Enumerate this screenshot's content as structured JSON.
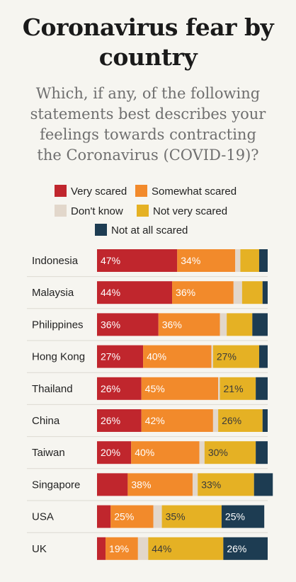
{
  "title_line1": "Coronavirus fear by",
  "title_line2": "country",
  "subtitle_lines": [
    "Which, if any, of the following",
    "statements best describes your",
    "feelings towards contracting",
    "the Coronavirus (COVID-19)?"
  ],
  "legend": [
    {
      "label": "Very scared",
      "color": "#c0262d"
    },
    {
      "label": "Somewhat scared",
      "color": "#f28a2b"
    },
    {
      "label": "Don't know",
      "color": "#e2d7cb"
    },
    {
      "label": "Not very scared",
      "color": "#e5b124"
    },
    {
      "label": "Not at all scared",
      "color": "#1d3c52"
    }
  ],
  "chart_data": {
    "type": "bar",
    "orientation": "horizontal",
    "stacked": true,
    "categories": [
      "Indonesia",
      "Malaysia",
      "Philippines",
      "Hong Kong",
      "Thailand",
      "China",
      "Taiwan",
      "Singapore",
      "USA",
      "UK"
    ],
    "xlim": [
      0,
      100
    ],
    "series": [
      {
        "name": "Very scared",
        "color": "#c0262d",
        "values": [
          47,
          44,
          36,
          27,
          26,
          26,
          20,
          18,
          8,
          5
        ],
        "labels": [
          "47%",
          "44%",
          "36%",
          "27%",
          "26%",
          "26%",
          "20%",
          "",
          "",
          ""
        ]
      },
      {
        "name": "Somewhat scared",
        "color": "#f28a2b",
        "values": [
          34,
          36,
          36,
          40,
          45,
          42,
          40,
          38,
          25,
          19
        ],
        "labels": [
          "34%",
          "36%",
          "36%",
          "40%",
          "45%",
          "42%",
          "40%",
          "38%",
          "25%",
          "19%"
        ]
      },
      {
        "name": "Don't know",
        "color": "#e2d7cb",
        "values": [
          3,
          5,
          4,
          1,
          1,
          3,
          3,
          3,
          5,
          6
        ],
        "labels": [
          "",
          "",
          "",
          "",
          "",
          "",
          "",
          "",
          "",
          ""
        ]
      },
      {
        "name": "Not very scared",
        "color": "#e5b124",
        "values": [
          11,
          12,
          15,
          27,
          21,
          26,
          30,
          33,
          35,
          44
        ],
        "labels": [
          "",
          "",
          "",
          "27%",
          "21%",
          "26%",
          "30%",
          "33%",
          "35%",
          "44%"
        ]
      },
      {
        "name": "Not at all scared",
        "color": "#1d3c52",
        "values": [
          5,
          3,
          9,
          5,
          7,
          3,
          7,
          11,
          25,
          26
        ],
        "labels": [
          "",
          "",
          "",
          "",
          "",
          "",
          "",
          "",
          "25%",
          "26%"
        ]
      }
    ]
  }
}
